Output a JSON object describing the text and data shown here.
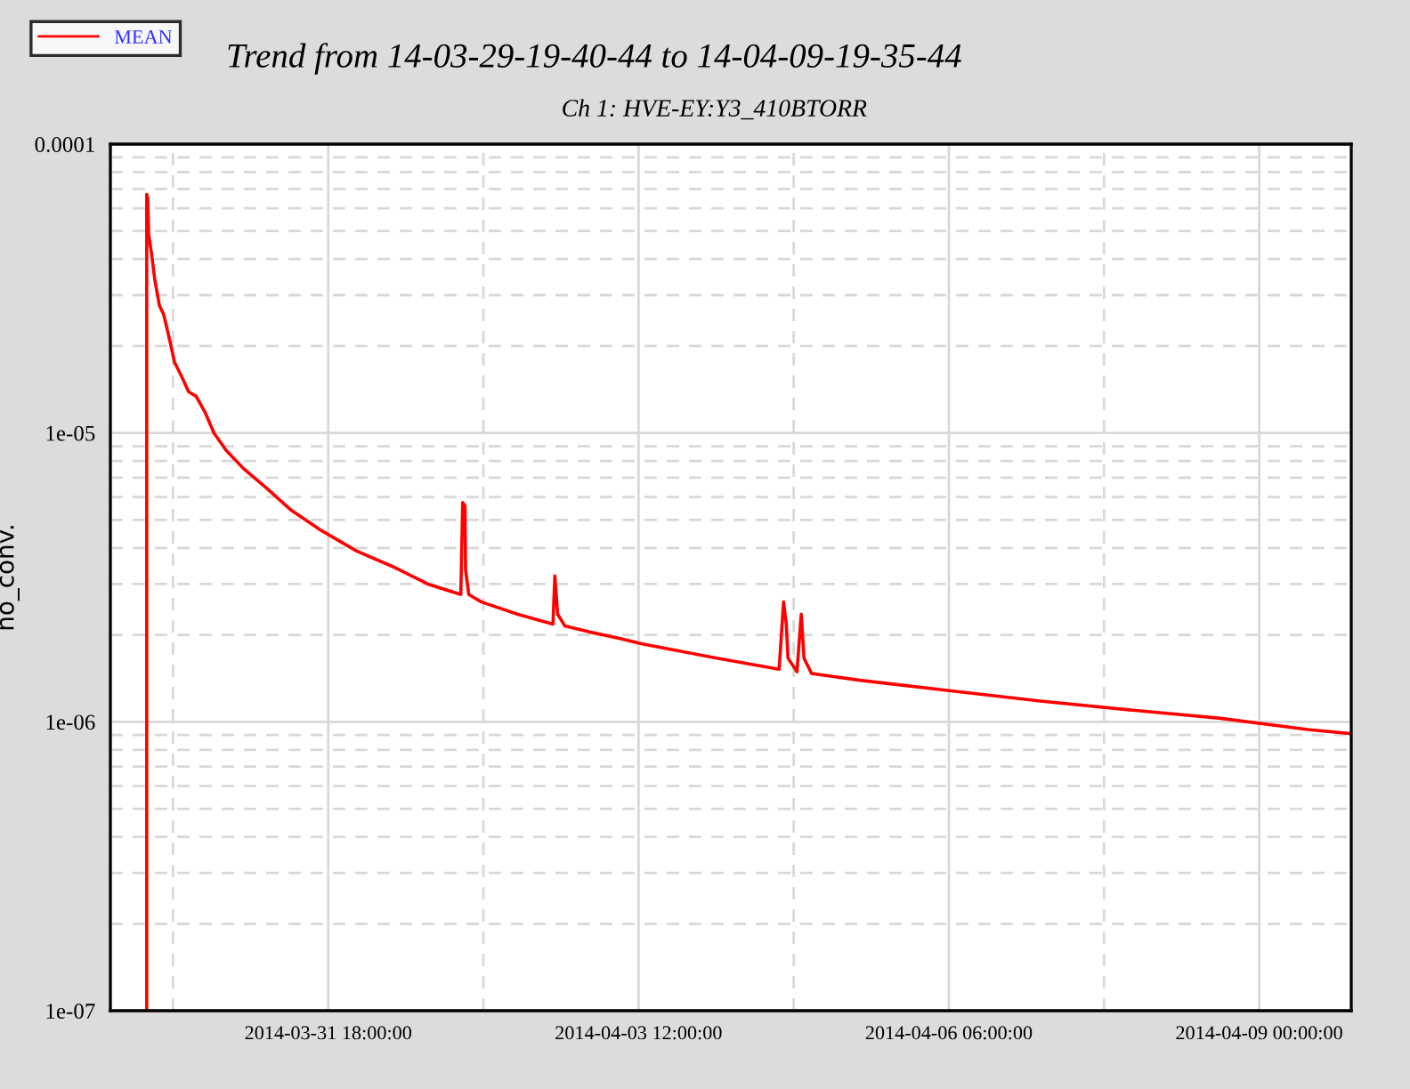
{
  "chart_data": {
    "type": "line",
    "title": "Trend from 14-03-29-19-40-44 to 14-04-09-19-35-44",
    "subtitle": "Ch 1: HVE-EY:Y3_410BTORR",
    "ylabel": "no_conv.",
    "log": "y",
    "grid": true,
    "legend": "top left",
    "marker": "none",
    "line_style": "solid",
    "xlim": [
      "2014-03-29T19:40",
      "2014-04-09T19:35"
    ],
    "xticks": [
      {
        "value": "2014-03-30T09:00",
        "label": null
      },
      {
        "value": "2014-03-31T18:00",
        "label": "2014-03-31 18:00:00"
      },
      {
        "value": "2014-04-02T03:00",
        "label": null
      },
      {
        "value": "2014-04-03T12:00",
        "label": "2014-04-03 12:00:00"
      },
      {
        "value": "2014-04-04T21:00",
        "label": null
      },
      {
        "value": "2014-04-06T06:00",
        "label": "2014-04-06 06:00:00"
      },
      {
        "value": "2014-04-07T15:00",
        "label": null
      },
      {
        "value": "2014-04-09T00:00",
        "label": "2014-04-09 00:00:00"
      }
    ],
    "ylim": [
      1e-07,
      0.0001
    ],
    "yticks": [
      {
        "value": 1e-07,
        "label": "1e-07"
      },
      {
        "value": 2e-07,
        "label": null
      },
      {
        "value": 3e-07,
        "label": null
      },
      {
        "value": 4e-07,
        "label": null
      },
      {
        "value": 5e-07,
        "label": null
      },
      {
        "value": 6e-07,
        "label": null
      },
      {
        "value": 7e-07,
        "label": null
      },
      {
        "value": 8e-07,
        "label": null
      },
      {
        "value": 9e-07,
        "label": null
      },
      {
        "value": 1e-06,
        "label": "1e-06"
      },
      {
        "value": 2e-06,
        "label": null
      },
      {
        "value": 3e-06,
        "label": null
      },
      {
        "value": 4e-06,
        "label": null
      },
      {
        "value": 5e-06,
        "label": null
      },
      {
        "value": 6e-06,
        "label": null
      },
      {
        "value": 7e-06,
        "label": null
      },
      {
        "value": 8e-06,
        "label": null
      },
      {
        "value": 9e-06,
        "label": null
      },
      {
        "value": 1e-05,
        "label": "1e-05"
      },
      {
        "value": 2e-05,
        "label": null
      },
      {
        "value": 3e-05,
        "label": null
      },
      {
        "value": 4e-05,
        "label": null
      },
      {
        "value": 5e-05,
        "label": null
      },
      {
        "value": 6e-05,
        "label": null
      },
      {
        "value": 7e-05,
        "label": null
      },
      {
        "value": 8e-05,
        "label": null
      },
      {
        "value": 9e-05,
        "label": null
      },
      {
        "value": 0.0001,
        "label": "0.0001"
      }
    ],
    "series": [
      {
        "name": "MEAN",
        "color": "#ff0000",
        "x": [
          "2014-03-30T03:24",
          "2014-03-30T03:24",
          "2014-03-30T03:36",
          "2014-03-30T03:48",
          "2014-03-30T04:27",
          "2014-03-30T05:06",
          "2014-03-30T06:06",
          "2014-03-30T07:00",
          "2014-03-30T07:36",
          "2014-03-30T08:36",
          "2014-03-30T09:18",
          "2014-03-30T10:48",
          "2014-03-30T12:18",
          "2014-03-30T13:54",
          "2014-03-30T15:48",
          "2014-03-30T17:42",
          "2014-03-30T20:18",
          "2014-03-31T00:06",
          "2014-03-31T05:06",
          "2014-03-31T10:09",
          "2014-03-31T16:30",
          "2014-04-01T00:04",
          "2014-04-01T07:40",
          "2014-04-01T15:12",
          "2014-04-01T22:12",
          "2014-04-01T22:36",
          "2014-04-01T23:06",
          "2014-04-01T23:12",
          "2014-04-01T23:54",
          "2014-04-02T02:36",
          "2014-04-02T10:12",
          "2014-04-02T17:48",
          "2014-04-02T18:12",
          "2014-04-02T18:48",
          "2014-04-02T20:18",
          "2014-04-03T01:24",
          "2014-04-03T07:42",
          "2014-04-03T12:48",
          "2014-04-04T03:54",
          "2014-04-04T17:54",
          "2014-04-04T18:51",
          "2014-04-04T19:24",
          "2014-04-04T19:48",
          "2014-04-04T21:42",
          "2014-04-04T22:36",
          "2014-04-04T23:12",
          "2014-04-05T00:48",
          "2014-04-05T11:30",
          "2014-04-06T06:30",
          "2014-04-07T01:30",
          "2014-04-07T20:24",
          "2014-04-08T15:24",
          "2014-04-09T10:24",
          "2014-04-09T19:35"
        ],
        "values": [
          1e-07,
          6.7e-05,
          6.5e-05,
          4.9e-05,
          4.15e-05,
          3.4e-05,
          2.76e-05,
          2.57e-05,
          2.34e-05,
          1.99e-05,
          1.76e-05,
          1.57e-05,
          1.39e-05,
          1.34e-05,
          1.18e-05,
          1e-05,
          8.7e-06,
          7.5e-06,
          6.4e-06,
          5.4e-06,
          4.6e-06,
          3.9e-06,
          3.45e-06,
          3e-06,
          2.76e-06,
          5.75e-06,
          5.6e-06,
          3.37e-06,
          2.76e-06,
          2.6e-06,
          2.36e-06,
          2.18e-06,
          3.2e-06,
          2.36e-06,
          2.15e-06,
          2.05e-06,
          1.95e-06,
          1.86e-06,
          1.67e-06,
          1.52e-06,
          2.6e-06,
          2.2e-06,
          1.66e-06,
          1.49e-06,
          2.36e-06,
          1.66e-06,
          1.47e-06,
          1.39e-06,
          1.28e-06,
          1.18e-06,
          1.1e-06,
          1.03e-06,
          9.4e-07,
          9.1e-07
        ]
      }
    ]
  }
}
